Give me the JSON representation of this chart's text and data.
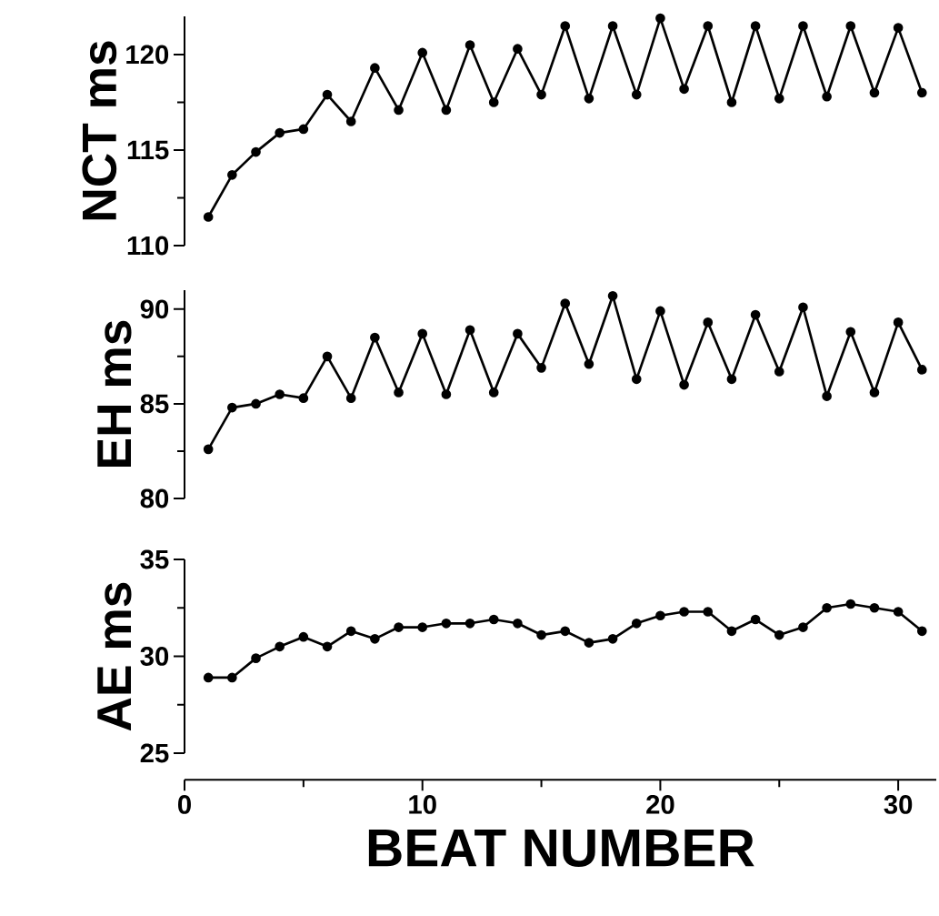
{
  "chart_data": [
    {
      "type": "line",
      "ylabel": "NCT ms",
      "tick_labels": "y",
      "marker": "circle",
      "color": "#000000",
      "x": [
        1,
        2,
        3,
        4,
        5,
        6,
        7,
        8,
        9,
        10,
        11,
        12,
        13,
        14,
        15,
        16,
        17,
        18,
        19,
        20,
        21,
        22,
        23,
        24,
        25,
        26,
        27,
        28,
        29,
        30,
        31
      ],
      "values": [
        111.5,
        113.7,
        114.9,
        115.9,
        116.1,
        117.9,
        116.5,
        119.3,
        117.1,
        120.1,
        117.1,
        120.5,
        117.5,
        120.3,
        117.9,
        121.5,
        117.7,
        121.5,
        117.9,
        121.9,
        118.2,
        121.5,
        117.5,
        121.5,
        117.7,
        121.5,
        117.8,
        121.5,
        118.0,
        121.4,
        118.0
      ],
      "ylim": [
        110,
        122
      ],
      "yticks": [
        110,
        115,
        120
      ]
    },
    {
      "type": "line",
      "ylabel": "EH ms",
      "tick_labels": "y",
      "marker": "circle",
      "color": "#000000",
      "x": [
        1,
        2,
        3,
        4,
        5,
        6,
        7,
        8,
        9,
        10,
        11,
        12,
        13,
        14,
        15,
        16,
        17,
        18,
        19,
        20,
        21,
        22,
        23,
        24,
        25,
        26,
        27,
        28,
        29,
        30,
        31
      ],
      "values": [
        82.6,
        84.8,
        85.0,
        85.5,
        85.3,
        87.5,
        85.3,
        88.5,
        85.6,
        88.7,
        85.5,
        88.9,
        85.6,
        88.7,
        86.9,
        90.3,
        87.1,
        90.7,
        86.3,
        89.9,
        86.0,
        89.3,
        86.3,
        89.7,
        86.7,
        90.1,
        85.4,
        88.8,
        85.6,
        89.3,
        86.8
      ],
      "ylim": [
        80,
        91
      ],
      "yticks": [
        80,
        85,
        90
      ]
    },
    {
      "type": "line",
      "ylabel": "AE ms",
      "xlabel": "BEAT NUMBER",
      "marker": "circle",
      "color": "#000000",
      "x": [
        1,
        2,
        3,
        4,
        5,
        6,
        7,
        8,
        9,
        10,
        11,
        12,
        13,
        14,
        15,
        16,
        17,
        18,
        19,
        20,
        21,
        22,
        23,
        24,
        25,
        26,
        27,
        28,
        29,
        30,
        31
      ],
      "values": [
        28.9,
        28.9,
        29.9,
        30.5,
        31.0,
        30.5,
        31.3,
        30.9,
        31.5,
        31.5,
        31.7,
        31.7,
        31.9,
        31.7,
        31.1,
        31.3,
        30.7,
        30.9,
        31.7,
        32.1,
        32.3,
        32.3,
        31.3,
        31.9,
        31.1,
        31.5,
        32.5,
        32.7,
        32.5,
        32.3,
        31.3
      ],
      "xlim": [
        0,
        31.6
      ],
      "ylim": [
        25,
        35
      ],
      "xticks": [
        0,
        10,
        20,
        30
      ],
      "yticks": [
        25,
        30,
        35
      ]
    }
  ]
}
